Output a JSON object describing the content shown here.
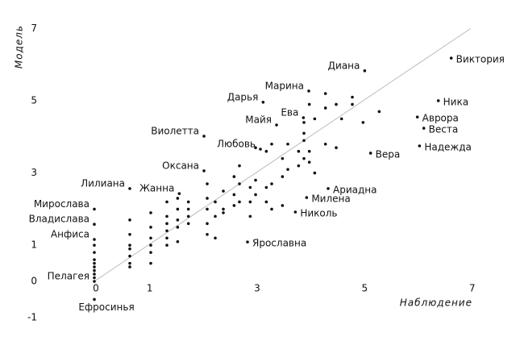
{
  "chart_data": {
    "type": "scatter",
    "x_label": "Наблюдение",
    "y_label": "Модель",
    "xlim": [
      -1.5,
      7.5
    ],
    "ylim": [
      -1.2,
      7.2
    ],
    "xticks": [
      0,
      1,
      3,
      5,
      7
    ],
    "yticks": [
      -1,
      0,
      1,
      3,
      5,
      7
    ],
    "color": "#111111",
    "line_color": "#bbbbbb",
    "x": [
      6.64,
      5.03,
      3.99,
      3.14,
      3.89,
      3.39,
      6.4,
      6.01,
      6.13,
      6.05,
      5.14,
      2.04,
      3.09,
      2.04,
      4.35,
      3.95,
      3.74,
      2.85,
      0.66,
      1.58,
      0,
      0,
      0,
      0,
      0,
      0,
      0,
      0,
      0,
      0,
      0,
      0,
      0,
      0.66,
      0.66,
      0.66,
      0.66,
      0.66,
      0.66,
      0.66,
      1.05,
      1.05,
      1.05,
      1.05,
      1.05,
      1.05,
      1.35,
      1.35,
      1.35,
      1.35,
      1.35,
      1.35,
      1.55,
      1.55,
      1.55,
      1.55,
      1.55,
      1.75,
      1.75,
      1.75,
      1.75,
      2.1,
      2.1,
      2.1,
      2.1,
      2.1,
      2.25,
      2.25,
      2.25,
      2.4,
      2.4,
      2.4,
      2.6,
      2.6,
      2.6,
      2.7,
      2.7,
      2.7,
      2.9,
      2.9,
      2.9,
      3.0,
      3.0,
      3.0,
      3.2,
      3.2,
      3.2,
      3.3,
      3.3,
      3.3,
      3.5,
      3.5,
      3.5,
      3.6,
      3.6,
      3.8,
      3.8,
      3.9,
      3.9,
      3.9,
      3.9,
      4.0,
      4.0,
      4.0,
      4.1,
      4.1,
      4.3,
      4.3,
      4.3,
      4.5,
      4.5,
      4.6,
      4.8,
      4.8,
      5.0,
      5.3
    ],
    "y": [
      6.18,
      5.83,
      5.27,
      4.96,
      4.53,
      4.33,
      5.0,
      4.55,
      4.24,
      3.75,
      3.55,
      4.02,
      3.66,
      3.06,
      2.57,
      2.32,
      1.92,
      1.09,
      2.57,
      2.43,
      2,
      1.58,
      1.16,
      0,
      -0.5,
      1.0,
      0.8,
      0.6,
      0.5,
      0.4,
      0.3,
      0.2,
      0.1,
      1.7,
      1.3,
      1.0,
      0.9,
      0.5,
      0.4,
      0.7,
      1.9,
      1.5,
      1.2,
      1.0,
      0.8,
      0.5,
      2.2,
      1.8,
      1.6,
      1.4,
      1.2,
      1.0,
      2.3,
      2.0,
      1.7,
      1.5,
      1.1,
      2.2,
      2.0,
      1.8,
      1.6,
      2.7,
      2.3,
      2.0,
      1.6,
      1.3,
      1.2,
      1.8,
      2.2,
      2.5,
      2.0,
      1.9,
      2.9,
      2.4,
      2.1,
      3.2,
      2.7,
      2.2,
      2.6,
      2.2,
      1.8,
      3.7,
      2.8,
      2.4,
      3.6,
      2.6,
      2.2,
      3.8,
      2.7,
      2.0,
      3.4,
      2.9,
      2.1,
      3.1,
      3.8,
      3.2,
      3.6,
      3.9,
      4.4,
      4.1,
      3.4,
      3.6,
      3.3,
      4.9,
      3.0,
      4.5,
      3.8,
      4.8,
      5.2,
      3.7,
      4.9,
      4.5,
      5.1,
      4.9,
      4.4,
      4.7
    ],
    "point_labels": [
      "Виктория",
      "Диана",
      "Марина",
      "Дарья",
      "Ева",
      "Майя",
      "Ника",
      "Аврора",
      "Веста",
      "Надежда",
      "Вера",
      "Виолетта",
      "Любовь",
      "Оксана",
      "Ариадна",
      "Милена",
      "Николь",
      "Ярославна",
      "Лилиана",
      "Жанна",
      "Мирослава",
      "Владислава",
      "Анфиса",
      "Пелагея",
      "Ефросинья",
      null,
      null,
      null,
      null,
      null,
      null,
      null,
      null,
      null,
      null,
      null,
      null,
      null,
      null,
      null,
      null,
      null,
      null,
      null,
      null,
      null,
      null,
      null,
      null,
      null,
      null,
      null,
      null,
      null,
      null,
      null,
      null,
      null,
      null,
      null,
      null,
      null,
      null,
      null,
      null,
      null,
      null,
      null,
      null,
      null,
      null,
      null,
      null,
      null,
      null,
      null,
      null,
      null,
      null,
      null,
      null,
      null,
      null,
      null,
      null,
      null,
      null,
      null,
      null,
      null,
      null,
      null,
      null,
      null,
      null,
      null,
      null,
      null,
      null,
      null,
      null,
      null,
      null,
      null,
      null,
      null,
      null,
      null,
      null,
      null,
      null,
      null,
      null,
      null,
      null,
      null
    ]
  }
}
